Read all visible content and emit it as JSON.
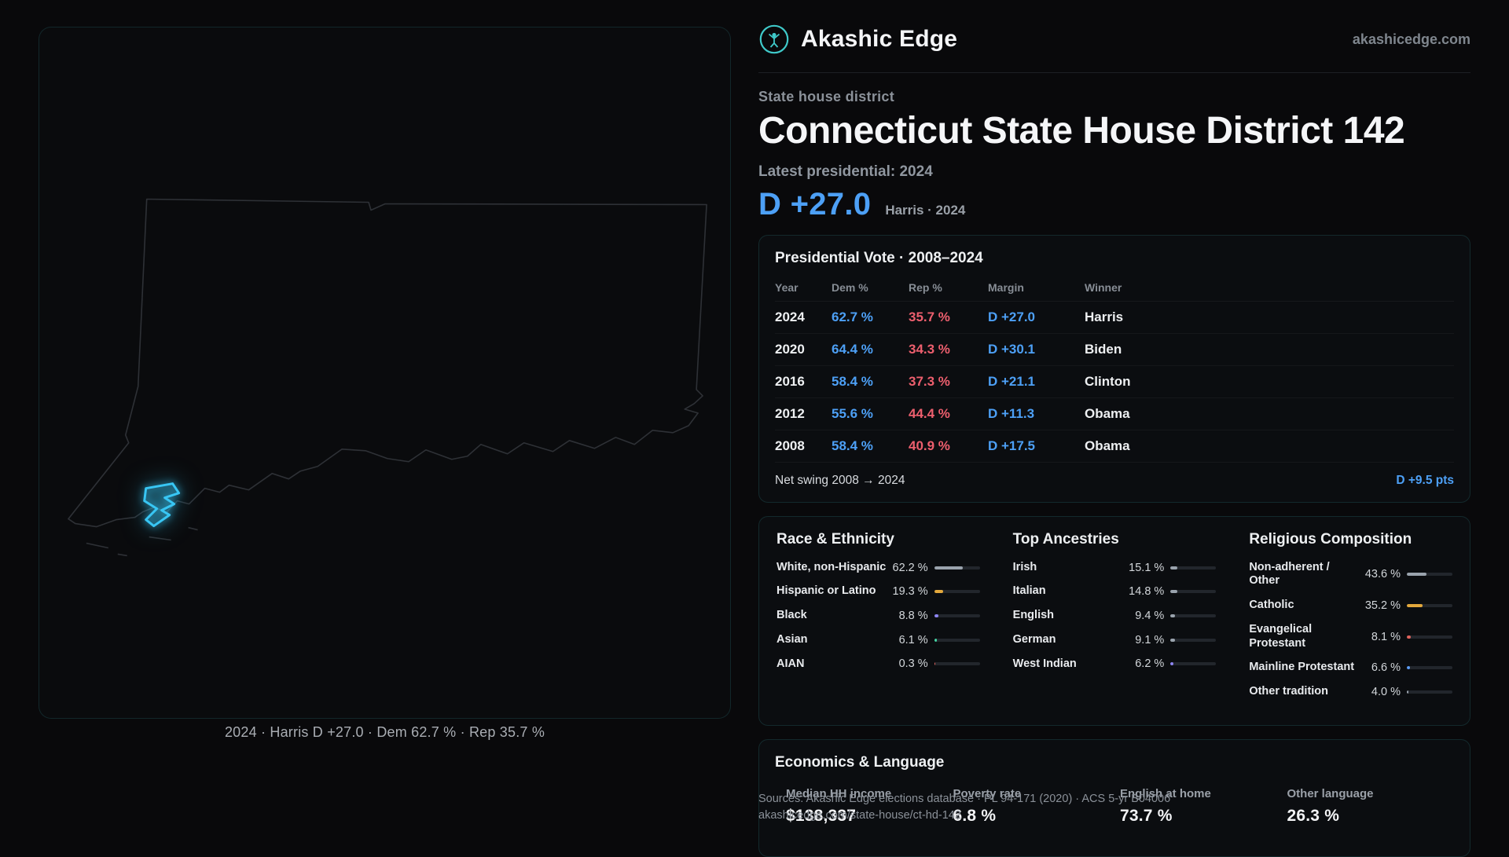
{
  "brand": {
    "name": "Akashic Edge",
    "domain": "akashicedge.com"
  },
  "page": {
    "kicker": "State house district",
    "title": "Connecticut State House District 142",
    "latest_label": "Latest presidential: 2024",
    "headline_margin": "D +27.0",
    "headline_sub": "Harris · 2024"
  },
  "map": {
    "caption": "2024 · Harris D +27.0 · Dem 62.7 % · Rep 35.7 %"
  },
  "presidential": {
    "title": "Presidential Vote · 2008–2024",
    "columns": [
      "Year",
      "Dem %",
      "Rep %",
      "Margin",
      "Winner"
    ],
    "rows": [
      {
        "year": "2024",
        "dem": "62.7 %",
        "rep": "35.7 %",
        "margin": "D +27.0",
        "winner": "Harris"
      },
      {
        "year": "2020",
        "dem": "64.4 %",
        "rep": "34.3 %",
        "margin": "D +30.1",
        "winner": "Biden"
      },
      {
        "year": "2016",
        "dem": "58.4 %",
        "rep": "37.3 %",
        "margin": "D +21.1",
        "winner": "Clinton"
      },
      {
        "year": "2012",
        "dem": "55.6 %",
        "rep": "44.4 %",
        "margin": "D +11.3",
        "winner": "Obama"
      },
      {
        "year": "2008",
        "dem": "58.4 %",
        "rep": "40.9 %",
        "margin": "D +17.5",
        "winner": "Obama"
      }
    ],
    "net_swing_label": "Net swing 2008 → 2024",
    "net_swing_value": "D +9.5 pts"
  },
  "demographics": {
    "race": {
      "title": "Race & Ethnicity",
      "rows": [
        {
          "label": "White, non-Hispanic",
          "value": "62.2 %",
          "pct": 62.2,
          "color": "#9aa3ad"
        },
        {
          "label": "Hispanic or Latino",
          "value": "19.3 %",
          "pct": 19.3,
          "color": "#e3a83c"
        },
        {
          "label": "Black",
          "value": "8.8 %",
          "pct": 8.8,
          "color": "#8d85f2"
        },
        {
          "label": "Asian",
          "value": "6.1 %",
          "pct": 6.1,
          "color": "#44d4a4"
        },
        {
          "label": "AIAN",
          "value": "0.3 %",
          "pct": 0.3,
          "color": "#e0635c"
        }
      ]
    },
    "ancestries": {
      "title": "Top Ancestries",
      "rows": [
        {
          "label": "Irish",
          "value": "15.1 %",
          "pct": 15.1,
          "color": "#9aa3ad"
        },
        {
          "label": "Italian",
          "value": "14.8 %",
          "pct": 14.8,
          "color": "#9aa3ad"
        },
        {
          "label": "English",
          "value": "9.4 %",
          "pct": 9.4,
          "color": "#9aa3ad"
        },
        {
          "label": "German",
          "value": "9.1 %",
          "pct": 9.1,
          "color": "#9aa3ad"
        },
        {
          "label": "West Indian",
          "value": "6.2 %",
          "pct": 6.2,
          "color": "#8d85f2"
        }
      ]
    },
    "religion": {
      "title": "Religious Composition",
      "rows": [
        {
          "label": "Non-adherent / Other",
          "value": "43.6 %",
          "pct": 43.6,
          "color": "#9aa3ad"
        },
        {
          "label": "Catholic",
          "value": "35.2 %",
          "pct": 35.2,
          "color": "#e3a83c"
        },
        {
          "label": "Evangelical Protestant",
          "value": "8.1 %",
          "pct": 8.1,
          "color": "#e0635c"
        },
        {
          "label": "Mainline Protestant",
          "value": "6.6 %",
          "pct": 6.6,
          "color": "#5b9cf6"
        },
        {
          "label": "Other tradition",
          "value": "4.0 %",
          "pct": 4.0,
          "color": "#9aa3ad"
        }
      ]
    }
  },
  "economics": {
    "title": "Economics & Language",
    "stats": [
      {
        "label": "Median HH income",
        "value": "$138,337"
      },
      {
        "label": "Poverty rate",
        "value": "6.8 %"
      },
      {
        "label": "English at home",
        "value": "73.7 %"
      },
      {
        "label": "Other language",
        "value": "26.3 %"
      }
    ]
  },
  "footer": {
    "sources": "Sources: Akashic Edge elections database · PL 94-171 (2020) · ACS 5-yr B04006",
    "permalink": "akashicedge.com/state-house/ct-hd-142"
  },
  "colors": {
    "accent_dem": "#4da0f6",
    "accent_rep": "#ed5f6e",
    "district": "#38c6f4",
    "logo_teal": "#3fc9c9"
  }
}
